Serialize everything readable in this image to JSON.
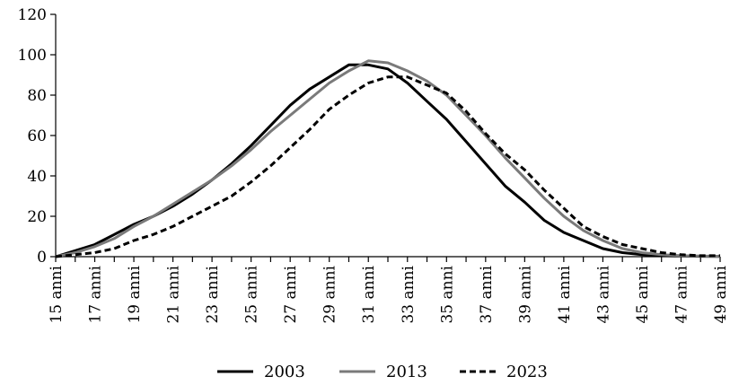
{
  "chart_data": {
    "type": "line",
    "title": "",
    "xlabel": "",
    "ylabel": "",
    "ylim": [
      0,
      120
    ],
    "yticks": [
      0,
      20,
      40,
      60,
      80,
      100,
      120
    ],
    "x": [
      15,
      16,
      17,
      18,
      19,
      20,
      21,
      22,
      23,
      24,
      25,
      26,
      27,
      28,
      29,
      30,
      31,
      32,
      33,
      34,
      35,
      36,
      37,
      38,
      39,
      40,
      41,
      42,
      43,
      44,
      45,
      46,
      47,
      48,
      49
    ],
    "x_tick_labels": [
      "15 anni",
      "17 anni",
      "19 anni",
      "21 anni",
      "23 anni",
      "25 anni",
      "27 anni",
      "29 anni",
      "31 anni",
      "33 anni",
      "35 anni",
      "37 anni",
      "39 anni",
      "41 anni",
      "43 anni",
      "45 anni",
      "47 anni",
      "49 anni"
    ],
    "grid": false,
    "legend_position": "bottom",
    "series": [
      {
        "name": "2003",
        "color": "#000000",
        "style": "solid",
        "values": [
          0,
          3,
          6,
          11,
          16,
          20,
          25,
          31,
          38,
          46,
          55,
          65,
          75,
          83,
          89,
          95,
          95,
          93,
          86,
          77,
          68,
          57,
          46,
          35,
          27,
          18,
          12,
          8,
          4,
          2,
          1,
          0.5,
          0.3,
          0.2,
          0.1
        ]
      },
      {
        "name": "2013",
        "color": "#7a7a7a",
        "style": "solid",
        "values": [
          0,
          2,
          5,
          9,
          15,
          20,
          26,
          32,
          38,
          45,
          53,
          62,
          70,
          78,
          86,
          92,
          97,
          96,
          92,
          87,
          80,
          70,
          60,
          49,
          39,
          29,
          20,
          13,
          8,
          4,
          2,
          1,
          0.5,
          0.3,
          0.2
        ]
      },
      {
        "name": "2023",
        "color": "#000000",
        "style": "dashed",
        "values": [
          0,
          1,
          2,
          4,
          8,
          11,
          15,
          20,
          25,
          30,
          37,
          45,
          54,
          63,
          73,
          80,
          86,
          89,
          89,
          85,
          81,
          72,
          61,
          51,
          43,
          33,
          24,
          15,
          10,
          6,
          4,
          2,
          1,
          0.5,
          0.5
        ]
      }
    ]
  }
}
